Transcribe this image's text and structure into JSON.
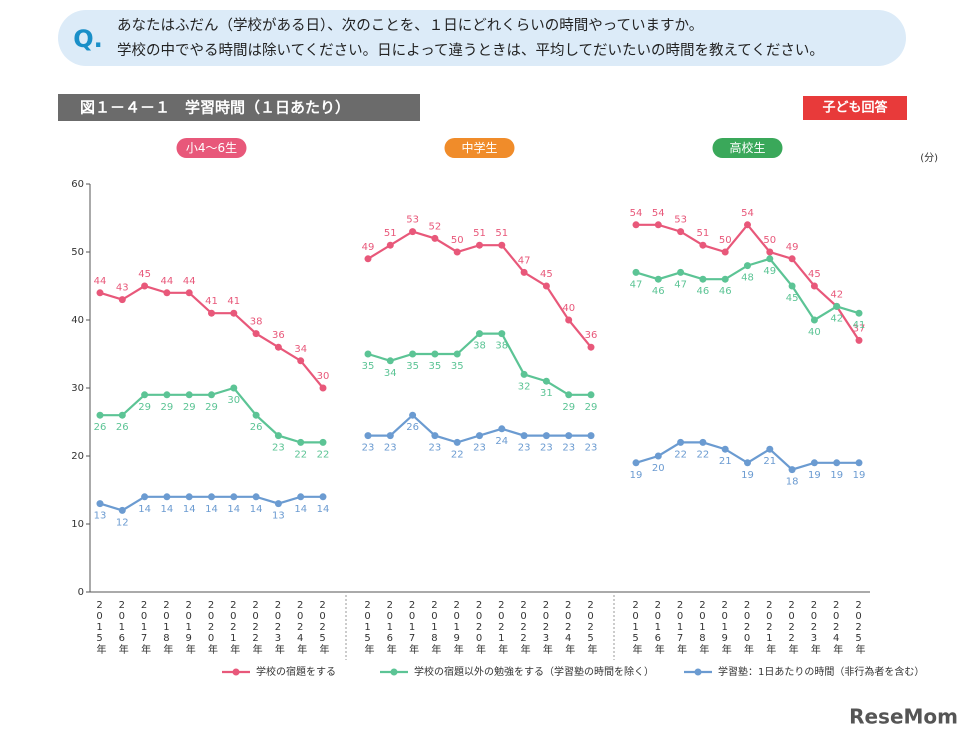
{
  "question": {
    "badge": "Q.",
    "lines": [
      "あなたはふだん（学校がある日）、次のことを、１日にどれくらいの時間やっていますか。",
      "学校の中でやる時間は除いてください。日によって違うときは、平均してだいたいの時間を教えてください。"
    ]
  },
  "figure_title": "図１－４－１　学習時間（１日あたり）",
  "respondent": "子ども回答",
  "watermark": "ReseMom",
  "chart_data": [
    {
      "type": "line",
      "title": "小4～6生",
      "title_color": "#e8587a",
      "ylabel": "(分)",
      "categories": [
        "2015年",
        "2016年",
        "2017年",
        "2018年",
        "2019年",
        "2020年",
        "2021年",
        "2022年",
        "2023年",
        "2024年",
        "2025年"
      ],
      "ylim": [
        0,
        60
      ],
      "yticks": [
        0,
        10,
        20,
        30,
        40,
        50,
        60
      ],
      "series": [
        {
          "name": "学校の宿題をする",
          "color": "#e8587a",
          "values": [
            44,
            43,
            45,
            44,
            44,
            41,
            41,
            38,
            36,
            34,
            30
          ]
        },
        {
          "name": "学校の宿題以外の勉強をする（学習塾の時間を除く）",
          "color": "#5cc495",
          "values": [
            26,
            26,
            29,
            29,
            29,
            29,
            30,
            26,
            23,
            22,
            22
          ]
        },
        {
          "name": "学習塾：1日あたりの時間（非行為者を含む）",
          "color": "#6b9bd1",
          "values": [
            13,
            12,
            14,
            14,
            14,
            14,
            14,
            14,
            13,
            14,
            14
          ]
        }
      ]
    },
    {
      "type": "line",
      "title": "中学生",
      "title_color": "#f08c2a",
      "categories": [
        "2015年",
        "2016年",
        "2017年",
        "2018年",
        "2019年",
        "2020年",
        "2021年",
        "2022年",
        "2023年",
        "2024年",
        "2025年"
      ],
      "ylim": [
        0,
        60
      ],
      "series": [
        {
          "color": "#e8587a",
          "values": [
            49,
            51,
            53,
            52,
            50,
            51,
            51,
            47,
            45,
            40,
            36
          ]
        },
        {
          "color": "#5cc495",
          "values": [
            35,
            34,
            35,
            35,
            35,
            38,
            38,
            32,
            31,
            29,
            29
          ]
        },
        {
          "color": "#6b9bd1",
          "values": [
            23,
            23,
            26,
            23,
            22,
            23,
            24,
            23,
            23,
            23,
            23
          ]
        }
      ]
    },
    {
      "type": "line",
      "title": "高校生",
      "title_color": "#3aa85a",
      "categories": [
        "2015年",
        "2016年",
        "2017年",
        "2018年",
        "2019年",
        "2020年",
        "2021年",
        "2022年",
        "2023年",
        "2024年",
        "2025年"
      ],
      "ylim": [
        0,
        60
      ],
      "series": [
        {
          "color": "#e8587a",
          "values": [
            54,
            54,
            53,
            51,
            50,
            54,
            50,
            49,
            45,
            42,
            37
          ]
        },
        {
          "color": "#5cc495",
          "values": [
            47,
            46,
            47,
            46,
            46,
            48,
            49,
            45,
            40,
            42,
            41
          ]
        },
        {
          "color": "#6b9bd1",
          "values": [
            19,
            20,
            22,
            22,
            21,
            19,
            21,
            18,
            19,
            19,
            19
          ]
        }
      ]
    }
  ]
}
